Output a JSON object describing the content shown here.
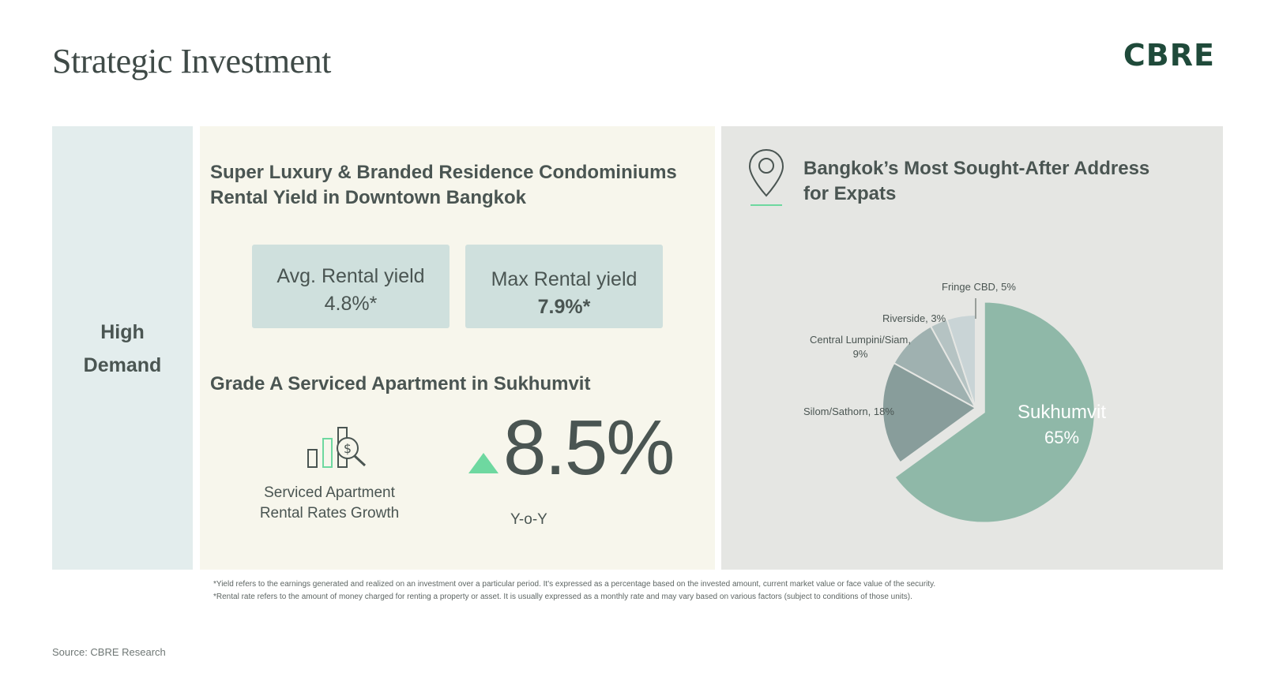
{
  "header": {
    "title": "Strategic Investment",
    "logo": "CBRE"
  },
  "left_panel": {
    "line1": "High",
    "line2": "Demand"
  },
  "middle_panel": {
    "heading_line1": "Super Luxury & Branded Residence Condominiums",
    "heading_line2": "Rental Yield in Downtown Bangkok",
    "avg_yield": {
      "label": "Avg. Rental yield",
      "value": "4.8%*"
    },
    "max_yield": {
      "label": "Max Rental yield",
      "value": "7.9%*"
    },
    "heading2": "Grade A Serviced Apartment in Sukhumvit",
    "growth_caption_line1": "Serviced Apartment",
    "growth_caption_line2": "Rental Rates Growth",
    "growth_value": "8.5%",
    "growth_period": "Y-o-Y",
    "icons": [
      "bar-chart-dollar-search-icon",
      "up-arrow-icon"
    ]
  },
  "right_panel": {
    "icons": [
      "location-pin-icon"
    ],
    "heading_line1": "Bangkok’s Most Sought-After Address",
    "heading_line2": "for Expats"
  },
  "chart_data": {
    "type": "pie",
    "slices": [
      {
        "label": "Sukhumvit",
        "value": 65,
        "color": "#8fb8a8",
        "label_display": "Sukhumvit",
        "value_display": "65%"
      },
      {
        "label": "Silom/Sathorn",
        "value": 18,
        "color": "#889d9b",
        "label_display": "Silom/Sathorn, 18%"
      },
      {
        "label": "Central Lumpini/Siam",
        "value": 9,
        "color": "#9fb1b0",
        "label_display_line1": "Central Lumpini/Siam,",
        "label_display_line2": "9%"
      },
      {
        "label": "Riverside",
        "value": 3,
        "color": "#b5c3c3",
        "label_display": "Riverside, 3%"
      },
      {
        "label": "Fringe CBD",
        "value": 5,
        "color": "#c9d4d6",
        "label_display": "Fringe CBD, 5%"
      }
    ],
    "exploded": "Sukhumvit"
  },
  "footnotes": [
    "*Yield refers to the earnings generated and realized on an investment over a particular period. It's expressed as a percentage based on the invested amount, current market value or face value of the security.",
    "*Rental rate refers to the amount of money charged for renting a property or asset. It is usually expressed as a monthly rate and may vary based on various factors (subject to conditions of those units)."
  ],
  "source": "Source: CBRE Research",
  "colors": {
    "brand": "#1f4a3a",
    "accent_green": "#6ed8a0",
    "text": "#4a5552"
  }
}
